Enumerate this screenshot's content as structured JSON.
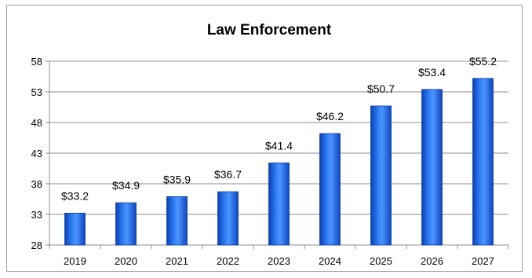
{
  "chart_data": {
    "type": "bar",
    "title": "Law Enforcement",
    "xlabel": "",
    "ylabel": "",
    "categories": [
      "2019",
      "2020",
      "2021",
      "2022",
      "2023",
      "2024",
      "2025",
      "2026",
      "2027"
    ],
    "values": [
      33.2,
      34.9,
      35.9,
      36.7,
      41.4,
      46.2,
      50.7,
      53.4,
      55.2
    ],
    "value_labels": [
      "$33.2",
      "$34.9",
      "$35.9",
      "$36.7",
      "$41.4",
      "$46.2",
      "$50.7",
      "$53.4",
      "$55.2"
    ],
    "ylim": [
      28,
      58
    ],
    "yticks": [
      28,
      33,
      38,
      43,
      48,
      53,
      58
    ],
    "grid": true,
    "legend": "none",
    "bar_color": "#1f66e6"
  }
}
